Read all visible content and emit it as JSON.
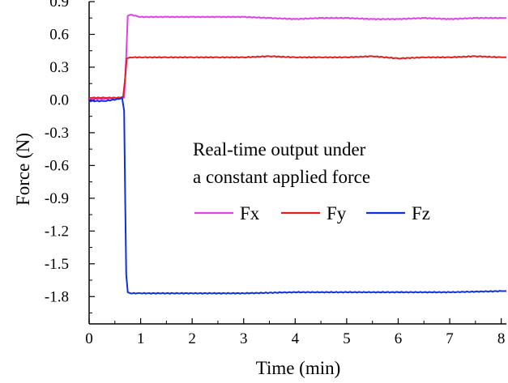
{
  "chart_data": {
    "type": "line",
    "title": "",
    "xlabel": "Time (min)",
    "ylabel": "Force (N)",
    "xlim": [
      0,
      8.1
    ],
    "ylim": [
      -2.05,
      0.9
    ],
    "xticks": [
      0,
      1,
      2,
      3,
      4,
      5,
      6,
      7,
      8
    ],
    "yticks": [
      0.9,
      0.6,
      0.3,
      0.0,
      -0.3,
      -0.6,
      -0.9,
      -1.2,
      -1.5,
      -1.8
    ],
    "ytick_labels": [
      "0.9",
      "0.6",
      "0.3",
      "0.0",
      "-0.3",
      "-0.6",
      "-0.9",
      "-1.2",
      "-1.5",
      "-1.8"
    ],
    "xtick_labels": [
      "0",
      "1",
      "2",
      "3",
      "4",
      "5",
      "6",
      "7",
      "8"
    ],
    "grid": false,
    "legend_position": "center-right",
    "annotation": [
      "Real-time output under",
      "a constant applied force"
    ],
    "series": [
      {
        "name": "Fx",
        "color": "#e040e8",
        "x": [
          0,
          0.3,
          0.6,
          0.68,
          0.72,
          0.75,
          0.8,
          1,
          1.5,
          2,
          2.5,
          3,
          3.5,
          4,
          4.5,
          5,
          5.5,
          6,
          6.5,
          7,
          7.5,
          8,
          8.1
        ],
        "y": [
          0.01,
          0.01,
          0.02,
          0.02,
          0.4,
          0.77,
          0.78,
          0.76,
          0.76,
          0.76,
          0.76,
          0.76,
          0.75,
          0.74,
          0.75,
          0.75,
          0.74,
          0.74,
          0.75,
          0.74,
          0.75,
          0.75,
          0.75
        ]
      },
      {
        "name": "Fy",
        "color": "#e02020",
        "x": [
          0,
          0.3,
          0.6,
          0.66,
          0.7,
          0.73,
          0.8,
          1,
          1.5,
          2,
          2.5,
          3,
          3.5,
          4,
          4.5,
          5,
          5.5,
          6,
          6.5,
          7,
          7.5,
          8,
          8.1
        ],
        "y": [
          0.02,
          0.02,
          0.02,
          0.03,
          0.2,
          0.38,
          0.39,
          0.39,
          0.39,
          0.39,
          0.39,
          0.39,
          0.4,
          0.39,
          0.39,
          0.39,
          0.4,
          0.38,
          0.39,
          0.39,
          0.4,
          0.39,
          0.39
        ]
      },
      {
        "name": "Fz",
        "color": "#1030e0",
        "x": [
          0,
          0.3,
          0.6,
          0.64,
          0.68,
          0.7,
          0.72,
          0.75,
          0.8,
          1,
          2,
          3,
          4,
          5,
          6,
          7,
          8,
          8.1
        ],
        "y": [
          -0.01,
          -0.01,
          0.01,
          0.02,
          -0.1,
          -0.9,
          -1.6,
          -1.76,
          -1.77,
          -1.77,
          -1.77,
          -1.77,
          -1.76,
          -1.76,
          -1.76,
          -1.76,
          -1.75,
          -1.75
        ]
      }
    ]
  }
}
